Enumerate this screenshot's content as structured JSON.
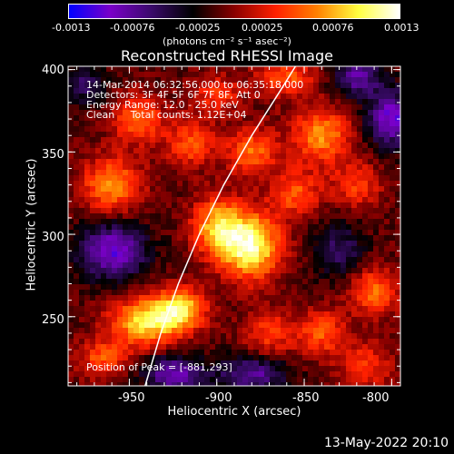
{
  "colorbar": {
    "tick_labels": [
      "-0.0013",
      "-0.00076",
      "-0.00025",
      "0.00025",
      "0.00076",
      "0.0013"
    ],
    "units": "(photons cm⁻² s⁻¹ asec⁻²)",
    "range": [
      -0.0013,
      0.0013
    ]
  },
  "chart_data": {
    "type": "heatmap",
    "title": "Reconstructed RHESSI Image",
    "xlabel": "Heliocentric X (arcsec)",
    "ylabel": "Heliocentric Y (arcsec)",
    "xlim": [
      -985,
      -795
    ],
    "ylim": [
      208,
      402
    ],
    "x_ticks": [
      -950,
      -900,
      -850,
      -800
    ],
    "y_ticks": [
      250,
      300,
      350,
      400
    ],
    "peak": [
      -881,
      293
    ],
    "colormap": [
      "#0000ff",
      "#7a00c8",
      "#3a0a6a",
      "#000000",
      "#8a0000",
      "#ff2000",
      "#ff8000",
      "#ffff40",
      "#ffffff"
    ],
    "limb_curve": [
      [
        -941,
        208
      ],
      [
        -932,
        240
      ],
      [
        -922,
        270
      ],
      [
        -910,
        300
      ],
      [
        -896,
        330
      ],
      [
        -880,
        360
      ],
      [
        -862,
        390
      ],
      [
        -855,
        402
      ]
    ],
    "sources": [
      {
        "x": -881,
        "y": 293,
        "value": 0.0013,
        "sx": 12,
        "sy": 14
      },
      {
        "x": -900,
        "y": 305,
        "value": 0.0009,
        "sx": 10,
        "sy": 12
      },
      {
        "x": -940,
        "y": 247,
        "value": 0.0011,
        "sx": 14,
        "sy": 10
      },
      {
        "x": -920,
        "y": 255,
        "value": 0.0009,
        "sx": 10,
        "sy": 9
      },
      {
        "x": -965,
        "y": 225,
        "value": 0.0006,
        "sx": 10,
        "sy": 8
      },
      {
        "x": -960,
        "y": 330,
        "value": 0.0008,
        "sx": 12,
        "sy": 12
      },
      {
        "x": -945,
        "y": 370,
        "value": 0.0007,
        "sx": 10,
        "sy": 10
      },
      {
        "x": -915,
        "y": 355,
        "value": 0.0006,
        "sx": 10,
        "sy": 10
      },
      {
        "x": -880,
        "y": 350,
        "value": 0.0007,
        "sx": 10,
        "sy": 10
      },
      {
        "x": -840,
        "y": 360,
        "value": 0.0008,
        "sx": 12,
        "sy": 12
      },
      {
        "x": -855,
        "y": 325,
        "value": 0.0006,
        "sx": 10,
        "sy": 10
      },
      {
        "x": -820,
        "y": 330,
        "value": 0.0005,
        "sx": 10,
        "sy": 10
      },
      {
        "x": -810,
        "y": 265,
        "value": 0.0007,
        "sx": 10,
        "sy": 10
      },
      {
        "x": -840,
        "y": 240,
        "value": 0.0006,
        "sx": 10,
        "sy": 10
      },
      {
        "x": -870,
        "y": 240,
        "value": 0.0005,
        "sx": 10,
        "sy": 10
      },
      {
        "x": -815,
        "y": 220,
        "value": 0.0005,
        "sx": 10,
        "sy": 10
      },
      {
        "x": -860,
        "y": 395,
        "value": 0.0006,
        "sx": 12,
        "sy": 8
      },
      {
        "x": -900,
        "y": 385,
        "value": 0.0005,
        "sx": 10,
        "sy": 8
      },
      {
        "x": -960,
        "y": 290,
        "value": -0.0009,
        "sx": 14,
        "sy": 12
      },
      {
        "x": -925,
        "y": 215,
        "value": -0.0008,
        "sx": 12,
        "sy": 8
      },
      {
        "x": -880,
        "y": 215,
        "value": -0.0007,
        "sx": 14,
        "sy": 8
      },
      {
        "x": -800,
        "y": 370,
        "value": -0.0009,
        "sx": 10,
        "sy": 12
      },
      {
        "x": -830,
        "y": 290,
        "value": -0.0005,
        "sx": 10,
        "sy": 12
      },
      {
        "x": -820,
        "y": 395,
        "value": -0.0007,
        "sx": 10,
        "sy": 8
      },
      {
        "x": -975,
        "y": 390,
        "value": -0.0005,
        "sx": 8,
        "sy": 8
      }
    ]
  },
  "info": {
    "line1": "14-Mar-2014 06:32:56.000 to 06:35:18.000",
    "line2": "Detectors: 3F 4F 5F 6F 7F 8F, Att 0",
    "line3": "Energy Range: 12.0 - 25.0 keV",
    "line4": "Clean     Total counts: 1.12E+04",
    "peak_text": "Position of Peak = [-881,293]"
  },
  "footer": {
    "timestamp": "13-May-2022 20:10"
  }
}
